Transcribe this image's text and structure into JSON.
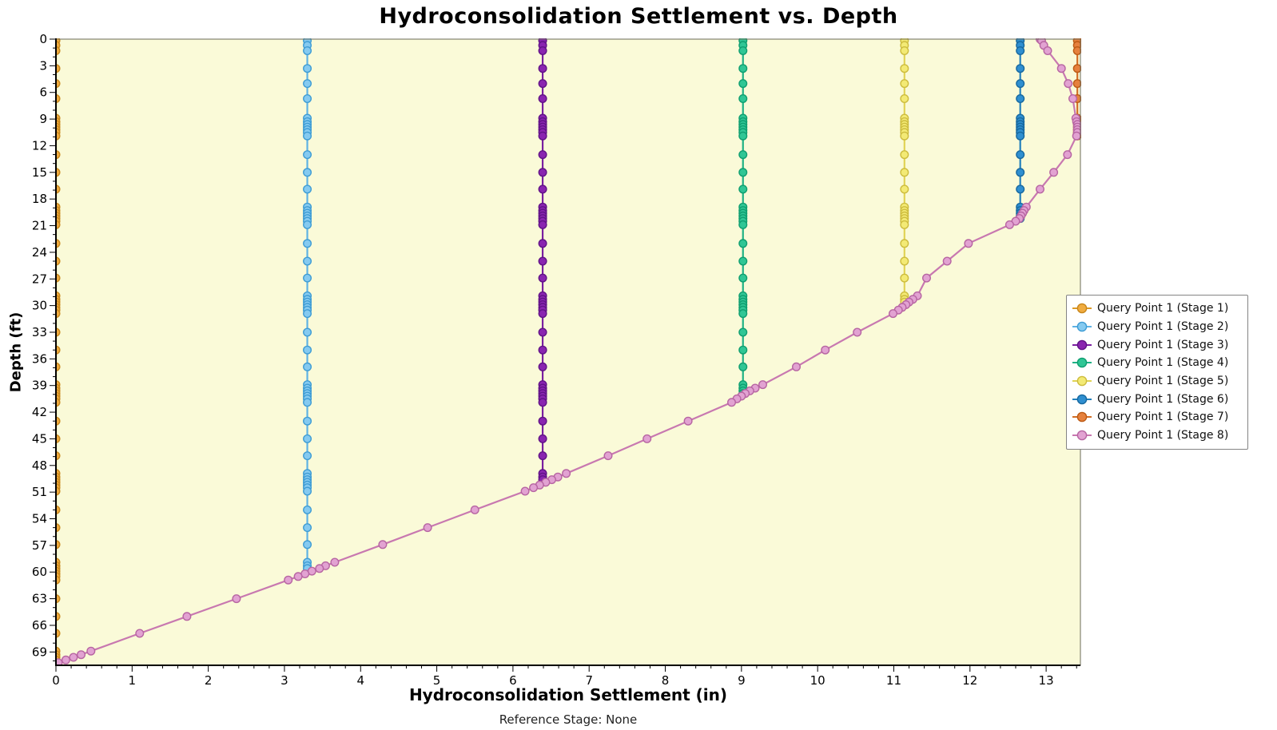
{
  "chart_data": {
    "type": "scatter",
    "title": "Hydroconsolidation Settlement vs. Depth",
    "xlabel": "Hydroconsolidation Settlement (in)",
    "ylabel": "Depth (ft)",
    "footnote": "Reference Stage: None",
    "xlim": [
      0,
      13.45
    ],
    "ylim": [
      0,
      70.5
    ],
    "x_ticks": [
      0,
      1,
      2,
      3,
      4,
      5,
      6,
      7,
      8,
      9,
      10,
      11,
      12,
      13
    ],
    "y_ticks": [
      0,
      3,
      6,
      9,
      12,
      15,
      18,
      21,
      24,
      27,
      30,
      33,
      36,
      39,
      42,
      45,
      48,
      51,
      54,
      57,
      60,
      63,
      66,
      69
    ],
    "x_minor_step": 0.2,
    "y_minor_step": 1,
    "grid": false,
    "legend_position": "right",
    "plot_bg": "#FAFAD8",
    "axis_color": "#000000",
    "border_color": "#6b6b5a",
    "mesh_depths": [
      0.15,
      0.7,
      1.3,
      3.3,
      5.0,
      6.7,
      8.9,
      9.3,
      9.6,
      9.9,
      10.2,
      10.5,
      10.9,
      13.0,
      15.0,
      16.9,
      18.9,
      19.3,
      19.6,
      19.9,
      20.2,
      20.5,
      20.9,
      23.0,
      25.0,
      26.9,
      28.9,
      29.3,
      29.6,
      29.9,
      30.2,
      30.5,
      30.9,
      33.0,
      35.0,
      36.9,
      38.9,
      39.3,
      39.6,
      39.9,
      40.2,
      40.5,
      40.9,
      43.0,
      45.0,
      46.9,
      48.9,
      49.3,
      49.6,
      49.9,
      50.2,
      50.5,
      50.9,
      53.0,
      55.0,
      56.9,
      58.9,
      59.3,
      59.6,
      59.9,
      60.2,
      60.5,
      60.9,
      63.0,
      65.0,
      66.9,
      68.9,
      69.3,
      69.6,
      69.9,
      70.2
    ],
    "series": [
      {
        "name": "Query Point 1 (Stage 1)",
        "x": 0.0,
        "end_depth": 70.3,
        "fill": "#F0AC40",
        "stroke": "#C8861A",
        "line": "#DC9A28"
      },
      {
        "name": "Query Point 1 (Stage 2)",
        "x": 3.3,
        "end_depth": 59.8,
        "fill": "#85CAF0",
        "stroke": "#3E9CD4",
        "line": "#5FB2E4"
      },
      {
        "name": "Query Point 1 (Stage 3)",
        "x": 6.39,
        "end_depth": 49.7,
        "fill": "#8A25B0",
        "stroke": "#611387",
        "line": "#7A1FA0"
      },
      {
        "name": "Query Point 1 (Stage 4)",
        "x": 9.02,
        "end_depth": 39.9,
        "fill": "#30C695",
        "stroke": "#0F9E70",
        "line": "#1FB285"
      },
      {
        "name": "Query Point 1 (Stage 5)",
        "x": 11.14,
        "end_depth": 29.8,
        "fill": "#F3EA75",
        "stroke": "#CDBC3E",
        "line": "#E0D355"
      },
      {
        "name": "Query Point 1 (Stage 6)",
        "x": 12.66,
        "end_depth": 20.35,
        "fill": "#2F8FD0",
        "stroke": "#17689F",
        "line": "#2380BC"
      },
      {
        "name": "Query Point 1 (Stage 7)",
        "x": 13.41,
        "end_depth": 11.2,
        "fill": "#E6813D",
        "stroke": "#BC5A14",
        "line": "#D26E26"
      },
      {
        "name": "Query Point 1 (Stage 8)",
        "fill": "#E2A2D2",
        "stroke": "#B765A2",
        "line": "#C878B0",
        "points": [
          [
            12.92,
            0.0
          ],
          [
            12.94,
            0.15
          ],
          [
            12.97,
            0.7
          ],
          [
            13.02,
            1.3
          ],
          [
            13.2,
            3.3
          ],
          [
            13.29,
            5.0
          ],
          [
            13.35,
            6.7
          ],
          [
            13.39,
            8.9
          ],
          [
            13.4,
            9.3
          ],
          [
            13.41,
            9.6
          ],
          [
            13.41,
            9.9
          ],
          [
            13.41,
            10.2
          ],
          [
            13.41,
            10.5
          ],
          [
            13.4,
            10.9
          ],
          [
            13.28,
            13.0
          ],
          [
            13.1,
            15.0
          ],
          [
            12.92,
            16.9
          ],
          [
            12.74,
            18.9
          ],
          [
            12.71,
            19.3
          ],
          [
            12.69,
            19.6
          ],
          [
            12.67,
            19.9
          ],
          [
            12.65,
            20.2
          ],
          [
            12.6,
            20.5
          ],
          [
            12.52,
            20.9
          ],
          [
            11.98,
            23.0
          ],
          [
            11.7,
            25.0
          ],
          [
            11.43,
            26.9
          ],
          [
            11.31,
            28.9
          ],
          [
            11.25,
            29.3
          ],
          [
            11.2,
            29.6
          ],
          [
            11.16,
            29.9
          ],
          [
            11.11,
            30.2
          ],
          [
            11.06,
            30.5
          ],
          [
            10.99,
            30.9
          ],
          [
            10.52,
            33.0
          ],
          [
            10.1,
            35.0
          ],
          [
            9.72,
            36.9
          ],
          [
            9.28,
            38.9
          ],
          [
            9.18,
            39.3
          ],
          [
            9.11,
            39.6
          ],
          [
            9.05,
            39.9
          ],
          [
            9.0,
            40.2
          ],
          [
            8.94,
            40.5
          ],
          [
            8.87,
            40.9
          ],
          [
            8.3,
            43.0
          ],
          [
            7.76,
            45.0
          ],
          [
            7.25,
            46.9
          ],
          [
            6.7,
            48.9
          ],
          [
            6.59,
            49.3
          ],
          [
            6.51,
            49.6
          ],
          [
            6.43,
            49.9
          ],
          [
            6.35,
            50.2
          ],
          [
            6.27,
            50.5
          ],
          [
            6.16,
            50.9
          ],
          [
            5.5,
            53.0
          ],
          [
            4.88,
            55.0
          ],
          [
            4.29,
            56.9
          ],
          [
            3.66,
            58.9
          ],
          [
            3.54,
            59.3
          ],
          [
            3.46,
            59.6
          ],
          [
            3.36,
            59.9
          ],
          [
            3.27,
            60.2
          ],
          [
            3.18,
            60.5
          ],
          [
            3.05,
            60.9
          ],
          [
            2.37,
            63.0
          ],
          [
            1.72,
            65.0
          ],
          [
            1.1,
            66.9
          ],
          [
            0.46,
            68.9
          ],
          [
            0.33,
            69.3
          ],
          [
            0.23,
            69.6
          ],
          [
            0.13,
            69.9
          ],
          [
            0.03,
            70.2
          ]
        ]
      }
    ]
  }
}
